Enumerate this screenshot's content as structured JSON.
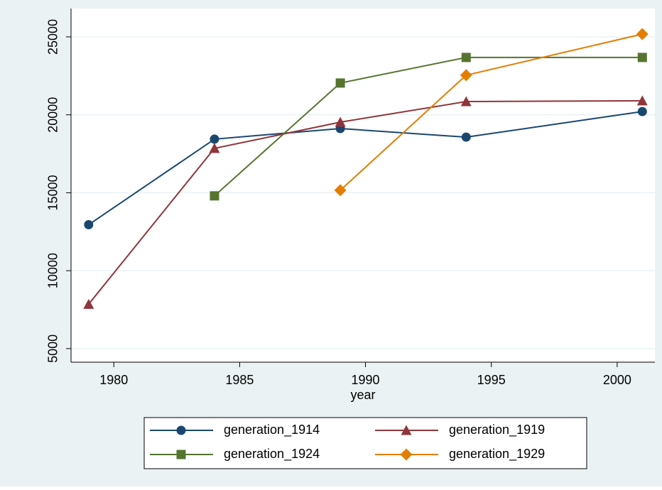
{
  "chart_data": {
    "type": "line",
    "x_label": "year",
    "x": [
      1979,
      1984,
      1989,
      1994,
      2001
    ],
    "series": [
      {
        "name": "generation_1914",
        "color": "#1a476f",
        "marker": "circle",
        "values": [
          12950,
          18440,
          19120,
          18570,
          20210
        ]
      },
      {
        "name": "generation_1919",
        "color": "#90353b",
        "marker": "triangle",
        "values": [
          7850,
          17850,
          19530,
          20850,
          20900
        ]
      },
      {
        "name": "generation_1924",
        "color": "#55752f",
        "marker": "square",
        "values": [
          null,
          14800,
          22040,
          23680,
          23680
        ]
      },
      {
        "name": "generation_1929",
        "color": "#e37e00",
        "marker": "diamond",
        "values": [
          null,
          null,
          15160,
          22540,
          25180
        ]
      }
    ],
    "xlim": [
      1978.3,
      2001.5
    ],
    "xticks": [
      1980,
      1985,
      1990,
      1995,
      2000
    ],
    "ylim": [
      4130,
      26820
    ],
    "yticks": [
      5000,
      10000,
      15000,
      20000,
      25000
    ],
    "grid": true,
    "legend": "bottom"
  }
}
